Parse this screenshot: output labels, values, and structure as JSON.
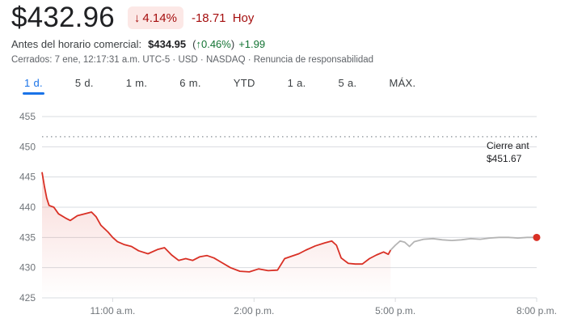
{
  "quote": {
    "price": "$432.96",
    "pct_arrow": "↓",
    "pct_change": "4.14%",
    "abs_change": "-18.71",
    "period": "Hoy"
  },
  "premarket": {
    "label": "Antes del horario comercial:",
    "price": "$434.95",
    "pct_open": "(",
    "pct_arrow": "↑",
    "pct_change": "0.46%",
    "pct_close": ")",
    "abs_change": "+1.99"
  },
  "meta": "Cerrados: 7 ene, 12:17:31 a.m. UTC-5 · USD · NASDAQ · Renuncia de responsabilidad",
  "tabs": [
    {
      "label": "1 d.",
      "active": true
    },
    {
      "label": "5 d.",
      "active": false
    },
    {
      "label": "1 m.",
      "active": false
    },
    {
      "label": "6 m.",
      "active": false
    },
    {
      "label": "YTD",
      "active": false
    },
    {
      "label": "1 a.",
      "active": false
    },
    {
      "label": "5 a.",
      "active": false
    },
    {
      "label": "MÁX.",
      "active": false
    }
  ],
  "colors": {
    "down": "#d93025",
    "after_hours": "#b4b4b4",
    "grid": "#dadce0",
    "accent": "#1a73e8"
  },
  "chart_data": {
    "type": "line",
    "ylim": [
      425,
      455
    ],
    "yticks": [
      "455",
      "450",
      "445",
      "440",
      "435",
      "430",
      "425"
    ],
    "xticks": [
      {
        "label": "11:00 a.m.",
        "t": 11
      },
      {
        "label": "2:00 p.m.",
        "t": 14
      },
      {
        "label": "5:00 p.m.",
        "t": 17
      },
      {
        "label": "8:00 p.m.",
        "t": 20
      }
    ],
    "xlim": [
      9.5,
      20
    ],
    "previous_close": {
      "label": "Cierre ant",
      "value_text": "$451.67",
      "value": 451.67
    },
    "series": [
      {
        "segment": "regular",
        "points": [
          [
            9.5,
            445.8
          ],
          [
            9.55,
            443.5
          ],
          [
            9.6,
            441.5
          ],
          [
            9.65,
            440.3
          ],
          [
            9.75,
            440.0
          ],
          [
            9.85,
            438.9
          ],
          [
            10.0,
            438.2
          ],
          [
            10.1,
            437.8
          ],
          [
            10.25,
            438.6
          ],
          [
            10.4,
            438.9
          ],
          [
            10.55,
            439.2
          ],
          [
            10.65,
            438.4
          ],
          [
            10.75,
            437.0
          ],
          [
            10.9,
            435.9
          ],
          [
            11.0,
            435.0
          ],
          [
            11.1,
            434.3
          ],
          [
            11.25,
            433.8
          ],
          [
            11.4,
            433.5
          ],
          [
            11.55,
            432.8
          ],
          [
            11.75,
            432.3
          ],
          [
            11.95,
            433.0
          ],
          [
            12.1,
            433.3
          ],
          [
            12.25,
            432.1
          ],
          [
            12.4,
            431.2
          ],
          [
            12.55,
            431.5
          ],
          [
            12.7,
            431.2
          ],
          [
            12.85,
            431.8
          ],
          [
            13.0,
            432.0
          ],
          [
            13.15,
            431.6
          ],
          [
            13.3,
            430.9
          ],
          [
            13.5,
            430.0
          ],
          [
            13.7,
            429.4
          ],
          [
            13.9,
            429.3
          ],
          [
            14.1,
            429.8
          ],
          [
            14.3,
            429.5
          ],
          [
            14.5,
            429.6
          ],
          [
            14.65,
            431.5
          ],
          [
            14.8,
            431.9
          ],
          [
            14.95,
            432.3
          ],
          [
            15.1,
            432.9
          ],
          [
            15.3,
            433.6
          ],
          [
            15.5,
            434.1
          ],
          [
            15.65,
            434.4
          ],
          [
            15.75,
            433.7
          ],
          [
            15.85,
            431.6
          ],
          [
            16.0,
            430.7
          ],
          [
            16.15,
            430.6
          ],
          [
            16.3,
            430.6
          ],
          [
            16.45,
            431.5
          ],
          [
            16.6,
            432.1
          ],
          [
            16.75,
            432.6
          ],
          [
            16.85,
            432.2
          ],
          [
            16.9,
            432.9
          ]
        ]
      },
      {
        "segment": "after_hours",
        "points": [
          [
            16.9,
            432.9
          ],
          [
            17.0,
            433.7
          ],
          [
            17.1,
            434.4
          ],
          [
            17.2,
            434.2
          ],
          [
            17.3,
            433.5
          ],
          [
            17.4,
            434.3
          ],
          [
            17.6,
            434.7
          ],
          [
            17.8,
            434.8
          ],
          [
            18.0,
            434.6
          ],
          [
            18.2,
            434.5
          ],
          [
            18.4,
            434.6
          ],
          [
            18.6,
            434.8
          ],
          [
            18.8,
            434.7
          ],
          [
            19.0,
            434.9
          ],
          [
            19.2,
            435.0
          ],
          [
            19.4,
            435.0
          ],
          [
            19.6,
            434.9
          ],
          [
            19.8,
            435.0
          ],
          [
            20.0,
            435.0
          ]
        ]
      }
    ]
  }
}
